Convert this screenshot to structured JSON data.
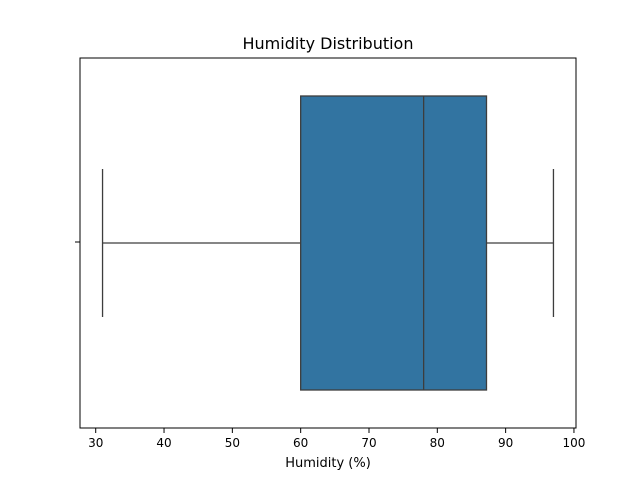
{
  "chart_data": {
    "type": "box",
    "orientation": "horizontal",
    "title": "Humidity Distribution",
    "xlabel": "Humidity (%)",
    "ylabel": "",
    "xlim": [
      27.7,
      100.3
    ],
    "x_ticks": [
      30,
      40,
      50,
      60,
      70,
      80,
      90,
      100
    ],
    "grid": false,
    "box": {
      "whisker_low": 31,
      "q1": 60,
      "median": 78,
      "q3": 87.2,
      "whisker_high": 97,
      "color": "#3274a1",
      "line_color": "#3d3d3d"
    }
  }
}
